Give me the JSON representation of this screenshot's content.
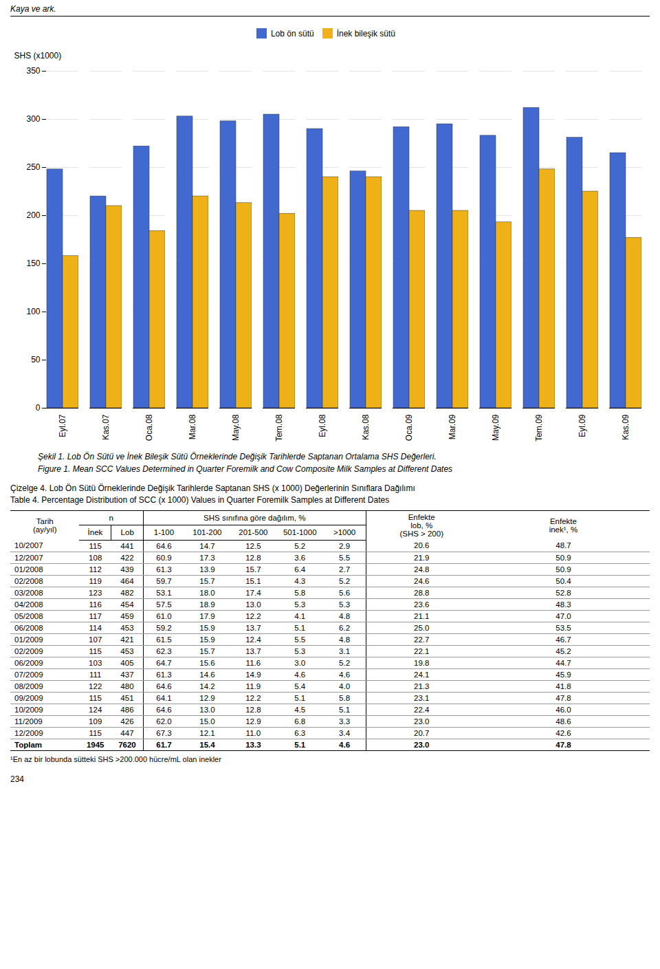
{
  "header": "Kaya ve ark.",
  "chart_data": {
    "type": "bar",
    "ylabel": "SHS (x1000)",
    "categories": [
      "Eyl.07",
      "Kas.07",
      "Oca.08",
      "Mar.08",
      "May.08",
      "Tem.08",
      "Eyl.08",
      "Kas.08",
      "Oca.09",
      "Mar.09",
      "May.09",
      "Tem.09",
      "Eyl.09",
      "Kas.09"
    ],
    "series": [
      {
        "name": "Lob ön sütü",
        "values": [
          248,
          220,
          272,
          303,
          298,
          305,
          290,
          246,
          292,
          295,
          283,
          312,
          281,
          265
        ]
      },
      {
        "name": "İnek bileşik sütü",
        "values": [
          158,
          210,
          184,
          220,
          213,
          202,
          240,
          240,
          205,
          205,
          193,
          248,
          225,
          177
        ]
      }
    ],
    "ylim": [
      0,
      350
    ],
    "yticks": [
      0,
      50,
      100,
      150,
      200,
      250,
      300,
      350
    ],
    "grid": true,
    "legend": "upper center"
  },
  "caption": [
    "Şekil 1. Lob Ön Sütü ve İnek Bileşik Sütü Örneklerinde Değişik Tarihlerde Saptanan Ortalama SHS Değerleri.",
    "Figure 1. Mean SCC Values Determined in Quarter Foremilk and Cow Composite Milk Samples at Different Dates"
  ],
  "table": {
    "title": [
      "Çizelge 4. Lob Ön Sütü Örneklerinde Değişik Tarihlerde Saptanan SHS (x 1000) Değerlerinin Sınıflara Dağılımı",
      "Table 4. Percentage Distribution of SCC (x 1000) Values in Quarter Foremilk Samples at Different Dates"
    ],
    "header": [
      "Tarih\n(ay/yıl)",
      "n",
      "SHS sınıfına göre dağılım, %",
      "Enfekte\nlob, %\n(SHS > 200)",
      "Enfekte\ninek¹, %"
    ],
    "subheader": [
      "İnek",
      "Lob",
      "1-100",
      "101-200",
      "201-500",
      "501-1000",
      ">1000"
    ],
    "rows": [
      [
        "10/2007",
        "115",
        "441",
        "64.6",
        "14.7",
        "12.5",
        "5.2",
        "2.9",
        "20.6",
        "48.7"
      ],
      [
        "12/2007",
        "108",
        "422",
        "60.9",
        "17.3",
        "12.8",
        "3.6",
        "5.5",
        "21.9",
        "50.9"
      ],
      [
        "01/2008",
        "112",
        "439",
        "61.3",
        "13.9",
        "15.7",
        "6.4",
        "2.7",
        "24.8",
        "50.9"
      ],
      [
        "02/2008",
        "119",
        "464",
        "59.7",
        "15.7",
        "15.1",
        "4.3",
        "5.2",
        "24.6",
        "50.4"
      ],
      [
        "03/2008",
        "123",
        "482",
        "53.1",
        "18.0",
        "17.4",
        "5.8",
        "5.6",
        "28.8",
        "52.8"
      ],
      [
        "04/2008",
        "116",
        "454",
        "57.5",
        "18.9",
        "13.0",
        "5.3",
        "5.3",
        "23.6",
        "48.3"
      ],
      [
        "05/2008",
        "117",
        "459",
        "61.0",
        "17.9",
        "12.2",
        "4.1",
        "4.8",
        "21.1",
        "47.0"
      ],
      [
        "06/2008",
        "114",
        "453",
        "59.2",
        "15.9",
        "13.7",
        "5.1",
        "6.2",
        "25.0",
        "53.5"
      ],
      [
        "01/2009",
        "107",
        "421",
        "61.5",
        "15.9",
        "12.4",
        "5.5",
        "4.8",
        "22.7",
        "46.7"
      ],
      [
        "02/2009",
        "115",
        "453",
        "62.3",
        "15.7",
        "13.7",
        "5.3",
        "3.1",
        "22.1",
        "45.2"
      ],
      [
        "06/2009",
        "103",
        "405",
        "64.7",
        "15.6",
        "11.6",
        "3.0",
        "5.2",
        "19.8",
        "44.7"
      ],
      [
        "07/2009",
        "111",
        "437",
        "61.3",
        "14.6",
        "14.9",
        "4.6",
        "4.6",
        "24.1",
        "45.9"
      ],
      [
        "08/2009",
        "122",
        "480",
        "64.6",
        "14.2",
        "11.9",
        "5.4",
        "4.0",
        "21.3",
        "41.8"
      ],
      [
        "09/2009",
        "115",
        "451",
        "64.1",
        "12.9",
        "12.2",
        "5.1",
        "5.8",
        "23.1",
        "47.8"
      ],
      [
        "10/2009",
        "124",
        "486",
        "64.6",
        "13.0",
        "12.8",
        "4.5",
        "5.1",
        "22.4",
        "46.0"
      ],
      [
        "11/2009",
        "109",
        "426",
        "62.0",
        "15.0",
        "12.9",
        "6.8",
        "3.3",
        "23.0",
        "48.6"
      ],
      [
        "12/2009",
        "115",
        "447",
        "67.3",
        "12.1",
        "11.0",
        "6.3",
        "3.4",
        "20.7",
        "42.6"
      ],
      [
        "Toplam",
        "1945",
        "7620",
        "61.7",
        "15.4",
        "13.3",
        "5.1",
        "4.6",
        "23.0",
        "47.8"
      ]
    ],
    "footnote": "¹En az bir lobunda sütteki SHS >200.000 hücre/mL olan inekler"
  },
  "page_number": "234"
}
